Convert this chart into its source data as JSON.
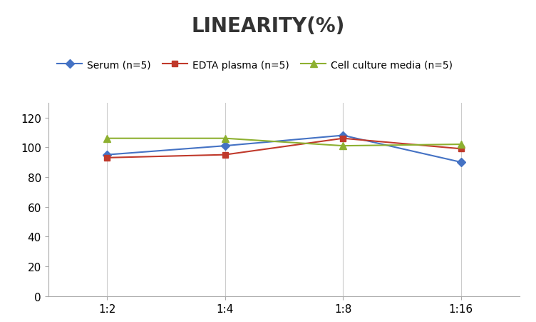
{
  "title": "LINEARITY(%)",
  "x_labels": [
    "1:2",
    "1:4",
    "1:8",
    "1:16"
  ],
  "x_positions": [
    0,
    1,
    2,
    3
  ],
  "series": [
    {
      "label": "Serum (n=5)",
      "values": [
        95,
        101,
        108,
        90
      ],
      "color": "#4472C4",
      "marker": "D",
      "markersize": 6,
      "linewidth": 1.5
    },
    {
      "label": "EDTA plasma (n=5)",
      "values": [
        93,
        95,
        106,
        99
      ],
      "color": "#C0392B",
      "marker": "s",
      "markersize": 6,
      "linewidth": 1.5
    },
    {
      "label": "Cell culture media (n=5)",
      "values": [
        106,
        106,
        101,
        102
      ],
      "color": "#8DB030",
      "marker": "^",
      "markersize": 7,
      "linewidth": 1.5
    }
  ],
  "ylim": [
    0,
    130
  ],
  "yticks": [
    0,
    20,
    40,
    60,
    80,
    100,
    120
  ],
  "xlim": [
    -0.5,
    3.5
  ],
  "grid_color": "#CCCCCC",
  "background_color": "#FFFFFF",
  "title_fontsize": 20,
  "title_fontweight": "bold",
  "legend_fontsize": 10,
  "tick_fontsize": 11
}
